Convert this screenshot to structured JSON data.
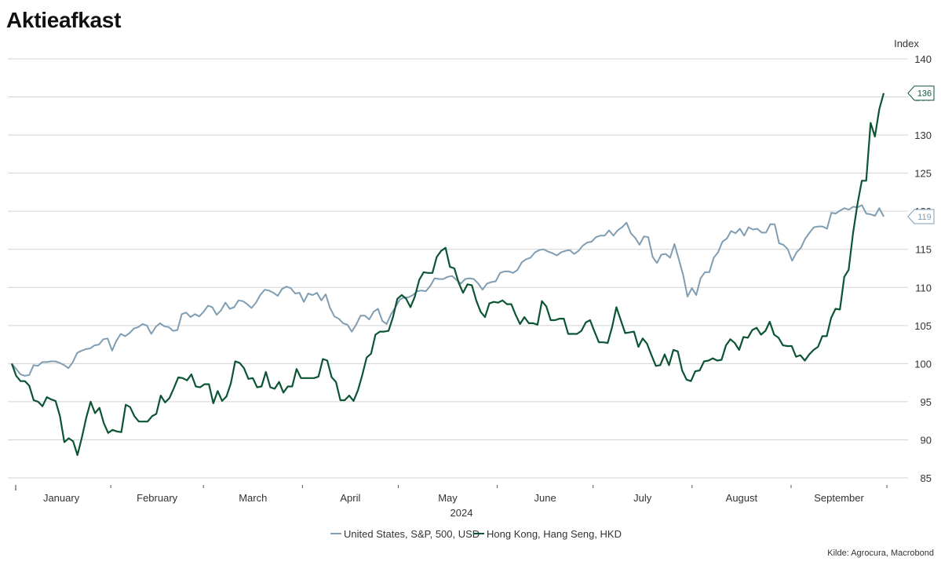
{
  "title": "Aktieafkast",
  "source": "Kilde: Agrocura, Macrobond",
  "chart_data": {
    "type": "line",
    "title": "Aktieafkast",
    "ylabel": "Index",
    "xlabel": "2024",
    "ylim": [
      84,
      141
    ],
    "yticks": [
      85,
      90,
      95,
      100,
      105,
      110,
      115,
      120,
      125,
      130,
      135,
      140
    ],
    "grid": true,
    "legend_position": "bottom",
    "months": [
      "January",
      "February",
      "March",
      "April",
      "May",
      "June",
      "July",
      "August",
      "September"
    ],
    "x_start": "2024-01-01",
    "x_end": "2024-09-30",
    "series": [
      {
        "name": "United States, S&P, 500, USD",
        "color": "#7f9db3",
        "end_label": "119",
        "values": [
          100,
          99.3,
          98.6,
          98.4,
          98.5,
          99.8,
          99.7,
          100.2,
          100.2,
          100.3,
          100.3,
          100.1,
          99.8,
          99.4,
          100.2,
          101.4,
          101.7,
          101.9,
          102.0,
          102.4,
          102.5,
          103.2,
          103.3,
          101.7,
          103.0,
          103.9,
          103.6,
          104.0,
          104.6,
          104.8,
          105.2,
          105.0,
          103.9,
          104.8,
          105.3,
          104.9,
          104.8,
          104.3,
          104.4,
          106.5,
          106.7,
          106.1,
          106.5,
          106.2,
          106.8,
          107.6,
          107.4,
          106.4,
          107.0,
          108.0,
          107.2,
          107.4,
          108.3,
          108.2,
          107.8,
          107.3,
          108.0,
          109.0,
          109.7,
          109.6,
          109.3,
          108.9,
          109.8,
          110.1,
          109.9,
          109.2,
          109.3,
          108.1,
          109.2,
          109.0,
          109.3,
          108.3,
          109.1,
          107.3,
          106.2,
          105.9,
          105.3,
          105.1,
          104.2,
          105.1,
          106.3,
          106.3,
          105.8,
          106.8,
          107.2,
          105.6,
          105.2,
          106.5,
          107.4,
          108.4,
          108.7,
          108.7,
          109.0,
          109.5,
          109.6,
          109.5,
          110.2,
          111.2,
          111.1,
          111.1,
          111.4,
          111.5,
          111.0,
          110.5,
          111.1,
          111.2,
          111.1,
          110.5,
          109.7,
          110.5,
          110.7,
          110.8,
          111.9,
          112.1,
          112.1,
          111.9,
          112.3,
          113.3,
          113.7,
          113.9,
          114.6,
          114.9,
          115.0,
          114.7,
          114.5,
          114.2,
          114.6,
          114.8,
          114.9,
          114.4,
          114.8,
          115.5,
          115.9,
          116.0,
          116.6,
          116.8,
          116.8,
          117.5,
          116.8,
          117.5,
          117.9,
          118.5,
          117.1,
          116.5,
          115.6,
          116.7,
          116.6,
          114.0,
          113.2,
          114.3,
          114.4,
          113.9,
          115.7,
          113.7,
          111.6,
          108.8,
          109.9,
          109.0,
          111.2,
          112.0,
          112.0,
          113.9,
          114.6,
          116.0,
          116.4,
          117.4,
          117.1,
          117.7,
          116.8,
          117.9,
          117.6,
          117.7,
          117.2,
          117.2,
          118.3,
          118.3,
          115.8,
          115.6,
          115.0,
          113.5,
          114.6,
          115.2,
          116.4,
          117.2,
          117.9,
          118.0,
          118.0,
          117.7,
          119.8,
          119.7,
          120.1,
          120.4,
          120.2,
          120.6,
          120.5,
          120.8,
          119.7,
          119.6,
          119.4,
          120.4,
          119.3
        ]
      },
      {
        "name": "Hong Kong, Hang Seng, HKD",
        "color": "#0b5535",
        "end_label": "136",
        "values": [
          100,
          98.4,
          97.7,
          97.7,
          97.1,
          95.2,
          95.0,
          94.4,
          95.6,
          95.3,
          95.1,
          93.1,
          89.7,
          90.2,
          89.8,
          88.0,
          90.3,
          92.9,
          95.0,
          93.5,
          94.2,
          92.2,
          90.9,
          91.3,
          91.1,
          91.0,
          94.6,
          94.3,
          93.1,
          92.4,
          92.4,
          92.4,
          93.1,
          93.4,
          95.8,
          94.9,
          95.5,
          96.8,
          98.2,
          98.1,
          97.8,
          98.6,
          97.0,
          96.9,
          97.3,
          97.3,
          94.8,
          96.4,
          95.1,
          95.7,
          97.4,
          100.3,
          100.1,
          99.4,
          98.0,
          98.1,
          96.9,
          97.0,
          98.9,
          96.9,
          96.7,
          97.6,
          96.2,
          97.0,
          97.0,
          99.3,
          98.1,
          98.1,
          98.1,
          98.1,
          98.3,
          100.6,
          100.4,
          98.2,
          97.6,
          95.2,
          95.2,
          95.8,
          95.1,
          96.5,
          98.5,
          100.8,
          101.3,
          103.8,
          104.2,
          104.2,
          104.3,
          106.1,
          108.5,
          109.0,
          108.5,
          107.4,
          108.8,
          111.0,
          112.0,
          111.9,
          111.9,
          114.0,
          114.8,
          115.2,
          112.7,
          112.5,
          110.6,
          109.3,
          110.4,
          110.3,
          108.3,
          106.8,
          106.1,
          107.9,
          108.1,
          108.0,
          108.3,
          107.8,
          107.8,
          106.4,
          105.2,
          106.1,
          105.3,
          105.3,
          105.1,
          108.2,
          107.5,
          105.7,
          105.7,
          105.9,
          105.9,
          103.9,
          103.9,
          103.9,
          104.3,
          105.4,
          105.7,
          104.2,
          102.8,
          102.8,
          102.7,
          104.8,
          107.4,
          105.7,
          104.0,
          104.1,
          104.2,
          102.2,
          103.3,
          102.6,
          101.1,
          99.7,
          99.8,
          101.2,
          99.8,
          101.8,
          101.6,
          99.1,
          97.9,
          97.7,
          99.0,
          99.1,
          100.3,
          100.4,
          100.7,
          100.4,
          100.5,
          102.4,
          103.2,
          102.7,
          101.8,
          103.5,
          103.4,
          104.4,
          104.7,
          103.8,
          104.3,
          105.5,
          103.8,
          103.4,
          102.4,
          102.3,
          102.3,
          100.9,
          101.1,
          100.4,
          101.2,
          101.8,
          102.2,
          103.6,
          103.6,
          106.0,
          107.2,
          107.1,
          111.4,
          112.3,
          117.1,
          120.9,
          124.0,
          124.0,
          131.6,
          129.8,
          133.4,
          135.5
        ]
      }
    ]
  }
}
